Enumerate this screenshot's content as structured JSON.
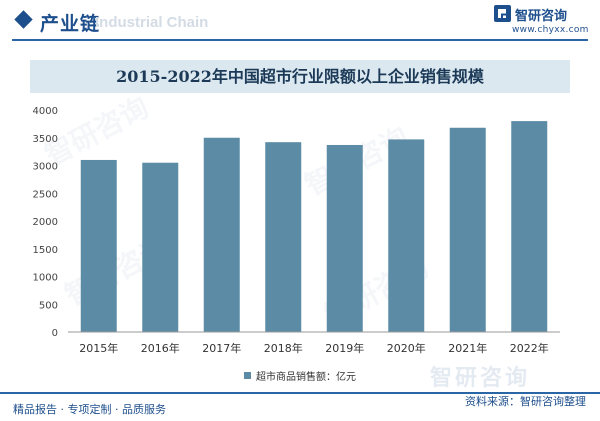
{
  "header": {
    "section_title": "产业链",
    "watermark_text": "Industrial Chain"
  },
  "logo": {
    "name": "智研咨询",
    "url": "www.chyxx.com",
    "color": "#1e4f8d"
  },
  "colors": {
    "bar": "#5b8ba5",
    "title_band": "#dbe8f0",
    "brand": "#1e4f8d"
  },
  "watermark": {
    "brand": "智研咨询"
  },
  "chart_data": {
    "type": "bar",
    "title": "2015-2022年中国超市行业限额以上企业销售规模",
    "categories": [
      "2015年",
      "2016年",
      "2017年",
      "2018年",
      "2019年",
      "2020年",
      "2021年",
      "2022年"
    ],
    "series": [
      {
        "name": "超市商品销售额：亿元",
        "values": [
          3100,
          3050,
          3500,
          3420,
          3370,
          3470,
          3680,
          3800
        ],
        "color": "#5b8ba5"
      }
    ],
    "ylim": [
      0,
      4000
    ],
    "yticks": [
      "0",
      "500",
      "1000",
      "1500",
      "2000",
      "2500",
      "3000",
      "3500",
      "4000"
    ],
    "grid": false,
    "legend_position": "bottom"
  },
  "footer": {
    "left_text": "精品报告 · 专项定制 · 品质服务",
    "source_label": "资料来源：",
    "source_org": "智研咨询整理"
  }
}
